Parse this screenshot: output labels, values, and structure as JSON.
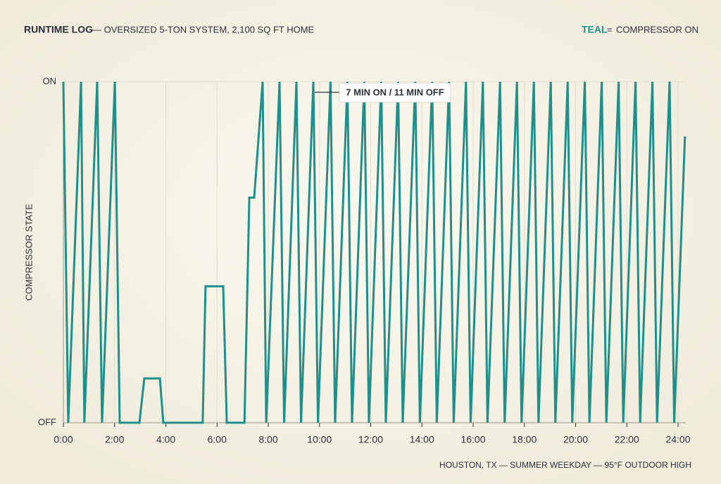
{
  "chart_data": {
    "type": "line",
    "title": "RUNTIME LOG",
    "subtitle": "— OVERSIZED 5-TON SYSTEM, 2,100 SQ FT HOME",
    "legend_key": "TEAL",
    "legend_separator": "=",
    "y_label": "COMPRESSOR STATE",
    "footer": "HOUSTON, TX — SUMMER WEEKDAY — 95°F OUTDOOR HIGH",
    "annotation": "7 MIN ON / 11 MIN OFF",
    "grid": true,
    "xlim": [
      0,
      24.3
    ],
    "ylim": [
      0,
      1
    ],
    "xticks": [
      {
        "value": 0,
        "label": "0:00"
      },
      {
        "value": 2,
        "label": "2:00"
      },
      {
        "value": 4,
        "label": "4:00"
      },
      {
        "value": 6,
        "label": "6:00"
      },
      {
        "value": 8,
        "label": "8:00"
      },
      {
        "value": 10,
        "label": "10:00"
      },
      {
        "value": 12,
        "label": "12:00"
      },
      {
        "value": 14,
        "label": "14:00"
      },
      {
        "value": 16,
        "label": "16:00"
      },
      {
        "value": 18,
        "label": "18:00"
      },
      {
        "value": 20,
        "label": "20:00"
      },
      {
        "value": 22,
        "label": "22:00"
      },
      {
        "value": 24,
        "label": "24:00"
      }
    ],
    "yticks": [
      {
        "value": 0,
        "label": "OFF"
      },
      {
        "value": 1,
        "label": "ON"
      }
    ],
    "x": [
      0,
      0.19,
      0.69,
      0.82,
      1.32,
      1.51,
      2.01,
      2.2,
      2.97,
      3.16,
      3.77,
      3.9,
      5.44,
      5.55,
      6.24,
      6.38,
      7.07,
      7.26,
      7.45,
      7.78,
      7.92,
      8.44,
      8.62,
      9.1,
      9.28,
      9.76,
      9.94,
      10.43,
      10.61,
      11.09,
      11.27,
      11.75,
      11.93,
      12.41,
      12.59,
      13.07,
      13.25,
      13.74,
      13.92,
      14.4,
      14.58,
      15.06,
      15.24,
      15.72,
      15.9,
      16.38,
      16.56,
      17.05,
      17.23,
      17.71,
      17.89,
      18.37,
      18.55,
      19.03,
      19.21,
      19.69,
      19.87,
      20.36,
      20.54,
      21.02,
      21.2,
      21.68,
      21.86,
      22.34,
      22.52,
      23.0,
      23.18,
      23.67,
      23.85,
      24.27
    ],
    "series": [
      {
        "name": "COMPRESSOR ON",
        "color": "#1f8f8c",
        "values": [
          1,
          0,
          1,
          0,
          1,
          0,
          1,
          0,
          0,
          0.13,
          0.13,
          0,
          0,
          0.4,
          0.4,
          0,
          0,
          0.66,
          0.66,
          1,
          0,
          1,
          0,
          1,
          0,
          1,
          0,
          1,
          0,
          1,
          0,
          1,
          0,
          1,
          0,
          1,
          0,
          1,
          0,
          1,
          0,
          1,
          0,
          1,
          0,
          1,
          0,
          1,
          0,
          1,
          0,
          1,
          0,
          1,
          0,
          1,
          0,
          1,
          0,
          1,
          0,
          1,
          0,
          1,
          0,
          1,
          0,
          1,
          0,
          0.84
        ]
      }
    ]
  }
}
